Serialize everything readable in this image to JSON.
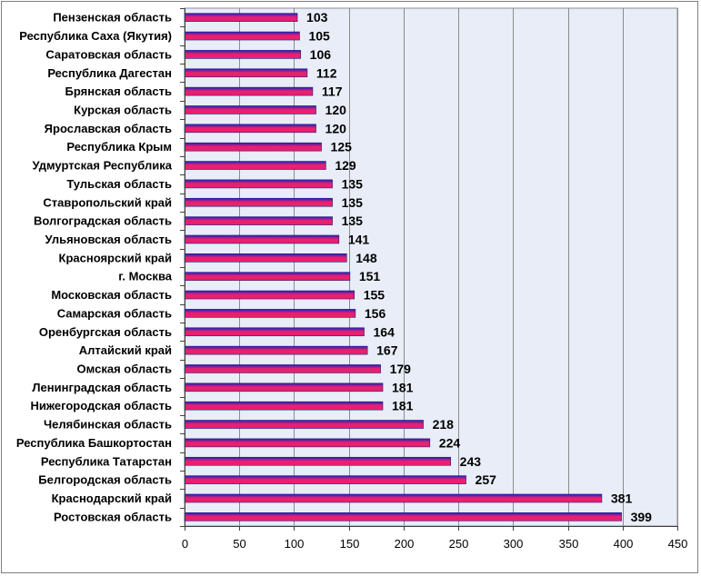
{
  "chart_data": {
    "type": "bar",
    "orientation": "horizontal",
    "categories": [
      "Пензенская область",
      "Республика Саха (Якутия)",
      "Саратовская область",
      "Республика Дагестан",
      "Брянская область",
      "Курская область",
      "Ярославская область",
      "Республика Крым",
      "Удмуртская Республика",
      "Тульская область",
      "Ставропольский край",
      "Волгоградская область",
      "Ульяновская область",
      "Красноярский край",
      "г. Москва",
      "Московская область",
      "Самарская область",
      "Оренбургская область",
      "Алтайский край",
      "Омская область",
      "Ленинградская область",
      "Нижегородская область",
      "Челябинская область",
      "Республика Башкортостан",
      "Республика Татарстан",
      "Белгородская область",
      "Краснодарский край",
      "Ростовская область"
    ],
    "values": [
      103,
      105,
      106,
      112,
      117,
      120,
      120,
      125,
      129,
      135,
      135,
      135,
      141,
      148,
      151,
      155,
      156,
      164,
      167,
      179,
      181,
      181,
      218,
      224,
      243,
      257,
      381,
      399
    ],
    "xlim": [
      0,
      450
    ],
    "xticks": [
      "0",
      "50",
      "100",
      "150",
      "200",
      "250",
      "300",
      "350",
      "400",
      "450"
    ],
    "grid": "vertical",
    "data_labels": true,
    "colors": {
      "plot_background": "#e8edf7",
      "gridline": "#8c8c8c",
      "bar_top": "#1f1fbf",
      "bar_bottom": "#e8206e",
      "bar_edge": "#202080"
    }
  }
}
